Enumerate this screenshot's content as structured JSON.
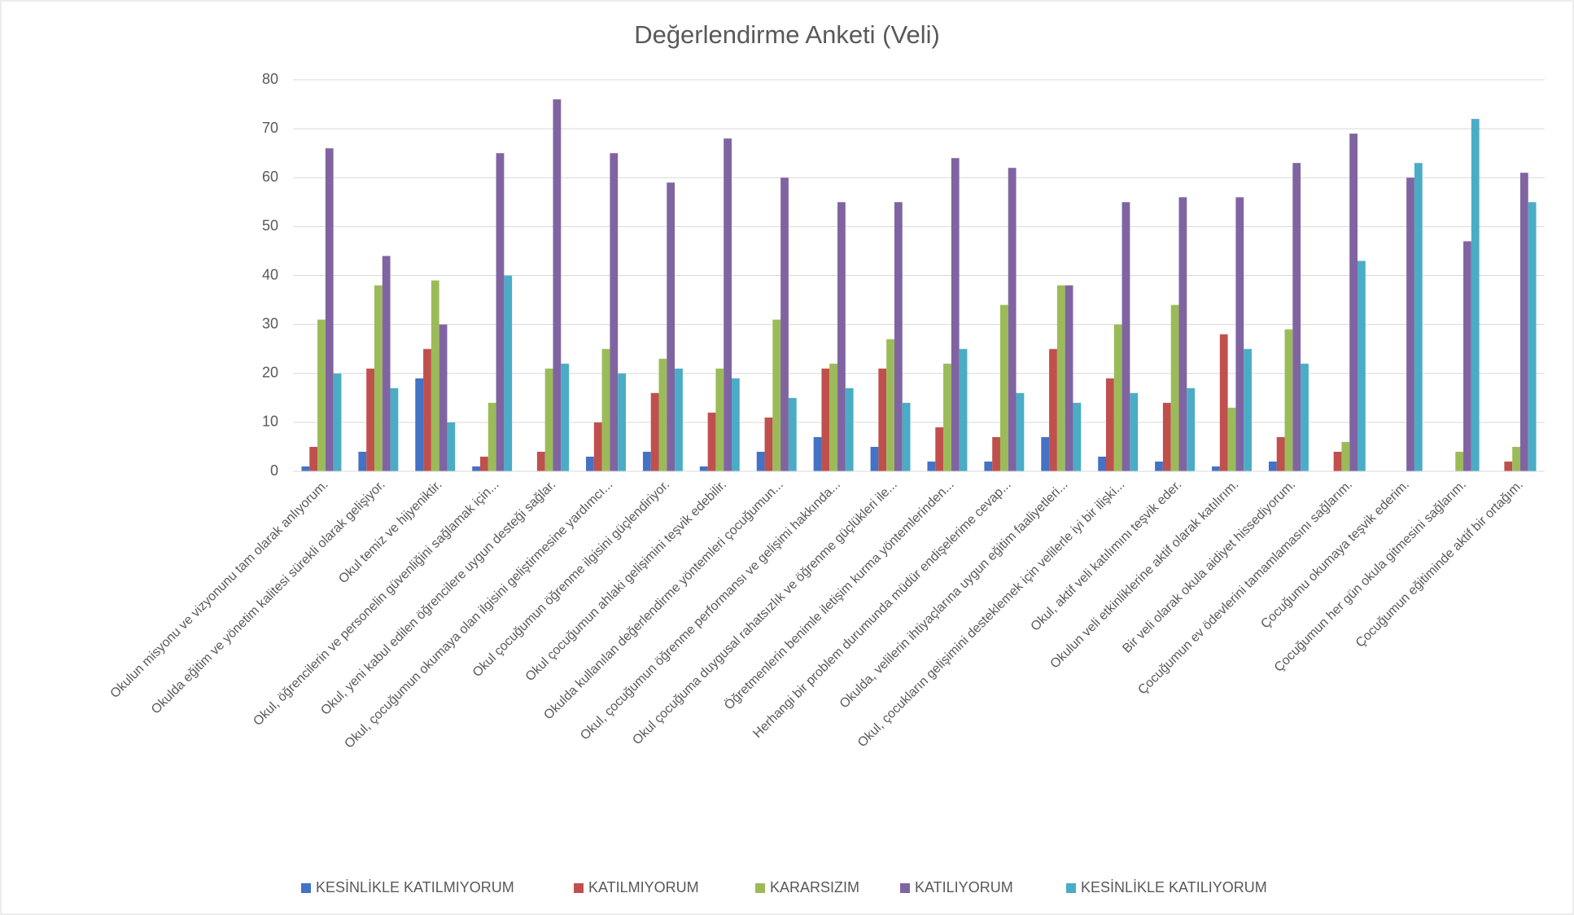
{
  "chart_data": {
    "type": "bar",
    "title": "Değerlendirme Anketi (Veli)",
    "categories": [
      "Okulun misyonu ve vizyonunu tam olarak anlıyorum.",
      "Okulda eğitim ve yönetim kalitesi sürekli olarak gelişiyor.",
      "Okul temiz ve hijyeniktir.",
      "Okul, öğrencilerin ve personelin güvenliğini sağlamak için...",
      "Okul, yeni kabul edilen öğrencilere uygun desteği sağlar.",
      "Okul, çocuğumun okumaya olan ilgisini geliştirmesine yardımcı...",
      "Okul çocuğumun öğrenme ilgisini güçlendiriyor.",
      "Okul çocuğumun ahlaki gelişimini teşvik edebilir.",
      "Okulda kullanılan değerlendirme yöntemleri çocuğumun...",
      "Okul, çocuğumun öğrenme performansı ve gelişimi hakkında...",
      "Okul çocuğuma duygusal rahatsızlık ve öğrenme güçlükleri ile...",
      "Öğretmenlerin benimle iletişim kurma yöntemlerinden...",
      "Herhangi bir problem durumunda müdür endişelerime cevap...",
      "Okulda, velilerin ihtiyaçlarına uygun eğitim faaliyetleri...",
      "Okul, çocukların gelişimini desteklemek için velilerle iyi bir ilişki...",
      "Okul, aktif veli katılımını teşvik eder.",
      "Okulun veli etkinliklerine aktif olarak katılırım.",
      "Bir veli olarak okula aidiyet hissediyorum.",
      "Çocuğumun ev ödevlerini tamamlamasını sağlarım.",
      "Çocuğumu okumaya teşvik ederim.",
      "Çocuğumun her gün okula gitmesini sağlarım.",
      "Çocuğumun eğitiminde aktif bir ortağım."
    ],
    "series": [
      {
        "name": "KESİNLİKLE KATILMIYORUM",
        "color": "#4472c4",
        "values": [
          1,
          4,
          19,
          1,
          0,
          3,
          4,
          1,
          4,
          7,
          5,
          2,
          2,
          7,
          3,
          2,
          1,
          2,
          0,
          0,
          0,
          0
        ]
      },
      {
        "name": "KATILMIYORUM",
        "color": "#c0504d",
        "values": [
          5,
          21,
          25,
          3,
          4,
          10,
          16,
          12,
          11,
          21,
          21,
          9,
          7,
          25,
          19,
          14,
          28,
          7,
          4,
          0,
          0,
          2
        ]
      },
      {
        "name": "KARARSIZIM",
        "color": "#9bbb59",
        "values": [
          31,
          38,
          39,
          14,
          21,
          25,
          23,
          21,
          31,
          22,
          27,
          22,
          34,
          38,
          30,
          34,
          13,
          29,
          6,
          0,
          4,
          5
        ]
      },
      {
        "name": "KATILIYORUM",
        "color": "#8064a2",
        "values": [
          66,
          44,
          30,
          65,
          76,
          65,
          59,
          68,
          60,
          55,
          55,
          64,
          62,
          38,
          55,
          56,
          56,
          63,
          69,
          60,
          47,
          61
        ]
      },
      {
        "name": "KESİNLİKLE KATILIYORUM",
        "color": "#4bacc6",
        "values": [
          20,
          17,
          10,
          40,
          22,
          20,
          21,
          19,
          15,
          17,
          14,
          25,
          16,
          14,
          16,
          17,
          25,
          22,
          43,
          63,
          72,
          55
        ]
      }
    ],
    "ylim": [
      0,
      80
    ],
    "yticks": [
      0,
      10,
      20,
      30,
      40,
      50,
      60,
      70,
      80
    ],
    "grid": true,
    "legend": "bottom"
  }
}
